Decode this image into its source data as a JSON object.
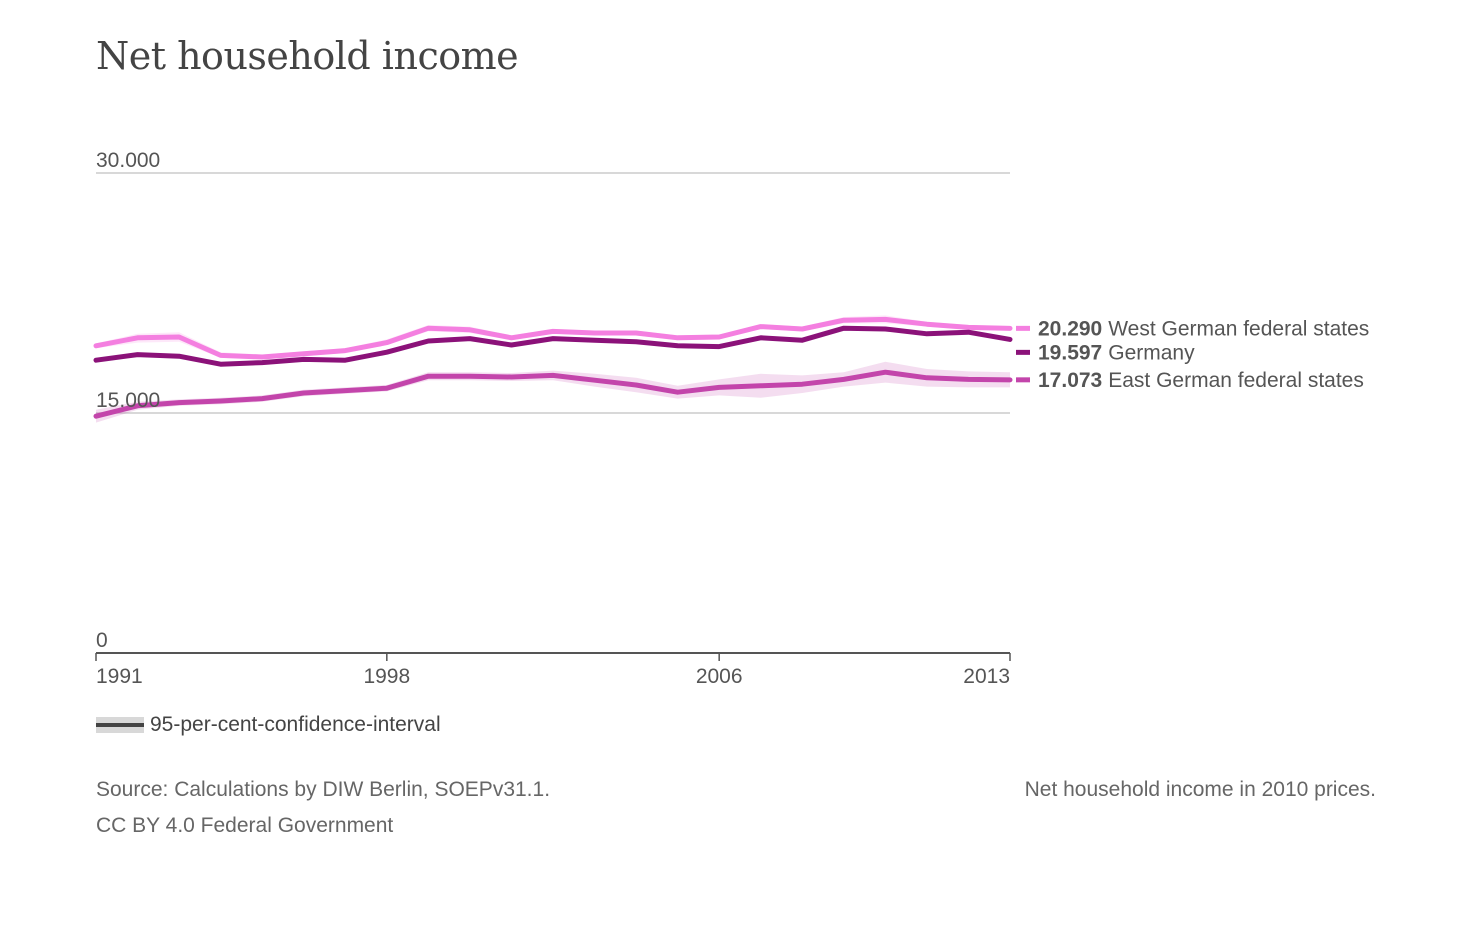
{
  "title": "Net household income",
  "chart_data": {
    "type": "line",
    "title": "Net household income",
    "xlabel": "",
    "ylabel": "",
    "x": [
      1991,
      1992,
      1993,
      1994,
      1995,
      1996,
      1997,
      1998,
      1999,
      2000,
      2001,
      2002,
      2003,
      2004,
      2005,
      2006,
      2007,
      2008,
      2009,
      2010,
      2011,
      2012,
      2013
    ],
    "xlim": [
      1991,
      2013
    ],
    "ylim": [
      0,
      30000
    ],
    "x_ticks": [
      1991,
      1998,
      2006,
      2013
    ],
    "x_tick_labels": [
      "1991",
      "1998",
      "2006",
      "2013"
    ],
    "y_ticks": [
      0,
      15000,
      30000
    ],
    "y_tick_labels": [
      "0",
      "15.000",
      "30.000"
    ],
    "grid": true,
    "series": [
      {
        "name": "West German federal states",
        "end_label": "20.290",
        "color": "#f47fe0",
        "values": [
          19200,
          19700,
          19750,
          18600,
          18500,
          18700,
          18900,
          19400,
          20300,
          20200,
          19700,
          20100,
          20000,
          20000,
          19700,
          19750,
          20400,
          20250,
          20800,
          20850,
          20550,
          20350,
          20290
        ],
        "ci_low": [
          19050,
          19400,
          19450,
          18450,
          18350,
          18550,
          18750,
          19250,
          20100,
          20000,
          19550,
          19950,
          19850,
          19850,
          19550,
          19600,
          20250,
          20100,
          20600,
          20600,
          20400,
          20200,
          20150
        ],
        "ci_high": [
          19350,
          19950,
          20050,
          18800,
          18650,
          18850,
          19050,
          19600,
          20500,
          20400,
          19850,
          20250,
          20150,
          20150,
          19850,
          19900,
          20550,
          20400,
          21000,
          21100,
          20700,
          20500,
          20430
        ]
      },
      {
        "name": "Germany",
        "end_label": "19.597",
        "color": "#8b1279",
        "values": [
          18300,
          18650,
          18550,
          18050,
          18150,
          18350,
          18300,
          18800,
          19500,
          19650,
          19250,
          19650,
          19550,
          19450,
          19200,
          19150,
          19700,
          19550,
          20300,
          20250,
          19950,
          20050,
          19597
        ]
      },
      {
        "name": "East German federal states",
        "end_label": "17.073",
        "color": "#c345ab",
        "values": [
          14800,
          15450,
          15650,
          15750,
          15900,
          16250,
          16400,
          16550,
          17300,
          17300,
          17250,
          17350,
          17050,
          16750,
          16300,
          16600,
          16700,
          16800,
          17100,
          17550,
          17200,
          17100,
          17073
        ],
        "ci_low": [
          14400,
          15200,
          15450,
          15550,
          15700,
          16050,
          16200,
          16350,
          17050,
          17050,
          17000,
          17050,
          16650,
          16300,
          15900,
          16100,
          15950,
          16250,
          16650,
          16900,
          16650,
          16600,
          16600
        ],
        "ci_high": [
          15200,
          15700,
          15850,
          15950,
          16100,
          16450,
          16600,
          16750,
          17550,
          17550,
          17500,
          17650,
          17450,
          17200,
          16700,
          17100,
          17450,
          17350,
          17550,
          18200,
          17750,
          17600,
          17550
        ]
      }
    ]
  },
  "legend": {
    "ci_label": "95-per-cent-confidence-interval"
  },
  "footer": {
    "source": "Source: Calculations by DIW Berlin, SOEPv31.1.",
    "license": "CC BY 4.0 Federal Government",
    "note": "Net household income in 2010 prices."
  }
}
